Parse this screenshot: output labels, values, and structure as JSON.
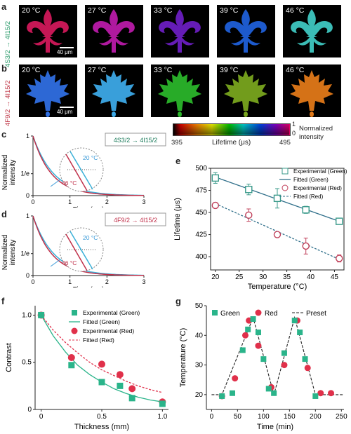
{
  "panel_a": {
    "letter": "a",
    "transition": "4S3/2 → 4I15/2",
    "temps": [
      "20 °C",
      "27 °C",
      "33 °C",
      "39 °C",
      "46 °C"
    ],
    "colors": [
      "#d0185a",
      "#b81aa8",
      "#6a1ec0",
      "#1f5fd8",
      "#3ec6c0"
    ],
    "scale_label": "40 μm"
  },
  "panel_b": {
    "letter": "b",
    "transition": "4F9/2 → 4I15/2",
    "temps": [
      "20 °C",
      "27 °C",
      "33 °C",
      "39 °C",
      "46 °C"
    ],
    "colors": [
      "#2f6ee0",
      "#3ca8e6",
      "#2ab42a",
      "#78a41e",
      "#e07818"
    ],
    "scale_label": "40 μm"
  },
  "colorbar": {
    "min": "395",
    "max": "495",
    "label": "Lifetime (μs)",
    "top": "1",
    "bottom": "0",
    "norm_label_1": "Normalized",
    "norm_label_2": "intensity"
  },
  "panel_c": {
    "letter": "c",
    "ylabel_1": "Normalized",
    "ylabel_2": "intensity",
    "xlabel": "Time (ms)",
    "xticks": [
      "0",
      "1",
      "2",
      "3"
    ],
    "yticks": [
      "0",
      "1/e",
      "1"
    ],
    "inset_top": "20 °C",
    "inset_bottom": "46 °C",
    "transition_box": "4S3/2 → 4I15/2"
  },
  "panel_d": {
    "letter": "d",
    "ylabel_1": "Normalized",
    "ylabel_2": "intensity",
    "xlabel": "Time (ms)",
    "xticks": [
      "0",
      "1",
      "2",
      "3"
    ],
    "yticks": [
      "0",
      "1/e",
      "1"
    ],
    "inset_top": "20 °C",
    "inset_bottom": "46 °C",
    "transition_box": "4F9/2 → 4I15/2"
  },
  "panel_e": {
    "letter": "e",
    "legend": [
      "Experimental (Green)",
      "Fitted (Green)",
      "Experimental (Red)",
      "Fitted (Red)"
    ]
  },
  "panel_f": {
    "letter": "f",
    "legend": [
      "Experimental (Green)",
      "Fitted (Green)",
      "Experimental (Red)",
      "Fitted (Red)"
    ]
  },
  "panel_g": {
    "letter": "g",
    "legend": [
      "Green",
      "Red",
      "Preset"
    ]
  },
  "chart_data": [
    {
      "type": "scatter",
      "id": "e",
      "xlabel": "Temperature (°C)",
      "ylabel": "Lifetime (μs)",
      "xlim": [
        19,
        47
      ],
      "ylim": [
        385,
        500
      ],
      "xticks": [
        20,
        25,
        30,
        35,
        40,
        45
      ],
      "yticks": [
        400,
        425,
        450,
        475,
        500
      ],
      "series": [
        {
          "name": "Experimental (Green)",
          "x": [
            20,
            27,
            33,
            39,
            46
          ],
          "y": [
            489,
            476,
            466,
            453,
            440
          ],
          "err": [
            6,
            6,
            11,
            4,
            3
          ],
          "color": "#3a9a8a"
        },
        {
          "name": "Fitted (Green)",
          "x": [
            20,
            46
          ],
          "y": [
            490,
            440
          ],
          "color": "#2f6f8a"
        },
        {
          "name": "Experimental (Red)",
          "x": [
            20,
            27,
            33,
            39,
            46
          ],
          "y": [
            458,
            447,
            425,
            412,
            398
          ],
          "err": [
            3,
            7,
            3,
            9,
            4
          ],
          "color": "#c0405a"
        },
        {
          "name": "Fitted (Red)",
          "x": [
            20,
            46
          ],
          "y": [
            460,
            397
          ],
          "color": "#2f6f8a"
        }
      ]
    },
    {
      "type": "scatter",
      "id": "f",
      "xlabel": "Thickness (mm)",
      "ylabel": "Contrast",
      "xlim": [
        -0.05,
        1.05
      ],
      "ylim": [
        0,
        1.1
      ],
      "xticks": [
        0,
        0.5,
        1.0
      ],
      "xtick_labels": [
        "0",
        "0.5",
        "1.0"
      ],
      "yticks": [
        0,
        0.5,
        1.0
      ],
      "ytick_labels": [
        "0",
        "0.5",
        "1.0"
      ],
      "series": [
        {
          "name": "Experimental (Green)",
          "x": [
            0,
            0.25,
            0.5,
            0.65,
            0.75,
            1.0
          ],
          "y": [
            1.0,
            0.47,
            0.29,
            0.25,
            0.12,
            0.06
          ],
          "color": "#2ab48a"
        },
        {
          "name": "Fitted (Green)",
          "x": [
            0,
            0.1,
            0.2,
            0.3,
            0.4,
            0.5,
            0.6,
            0.7,
            0.8,
            0.9,
            1.0
          ],
          "y": [
            1.0,
            0.78,
            0.61,
            0.47,
            0.37,
            0.29,
            0.22,
            0.17,
            0.13,
            0.1,
            0.08
          ],
          "color": "#2ab48a"
        },
        {
          "name": "Experimental (Red)",
          "x": [
            0,
            0.25,
            0.5,
            0.65,
            0.75,
            1.0
          ],
          "y": [
            1.0,
            0.55,
            0.48,
            0.37,
            0.22,
            0.08
          ],
          "color": "#e0304a"
        },
        {
          "name": "Fitted (Red)",
          "x": [
            0,
            0.1,
            0.2,
            0.3,
            0.4,
            0.5,
            0.6,
            0.7,
            0.8,
            0.9,
            1.0
          ],
          "y": [
            1.0,
            0.84,
            0.71,
            0.6,
            0.5,
            0.42,
            0.36,
            0.3,
            0.25,
            0.21,
            0.18
          ],
          "color": "#e0304a"
        }
      ]
    },
    {
      "type": "line",
      "id": "g",
      "xlabel": "Time (min)",
      "ylabel": "Temperature (°C)",
      "xlim": [
        -10,
        255
      ],
      "ylim": [
        15,
        50
      ],
      "xticks": [
        0,
        50,
        100,
        150,
        200,
        250
      ],
      "yticks": [
        20,
        30,
        40,
        50
      ],
      "series": [
        {
          "name": "Green",
          "x": [
            20,
            40,
            60,
            70,
            80,
            90,
            100,
            110,
            120,
            140,
            160,
            170,
            180,
            200
          ],
          "y": [
            19.5,
            20.5,
            35,
            42,
            45.5,
            41,
            32,
            22,
            20.5,
            34,
            45,
            41,
            32,
            19.5
          ],
          "color": "#2ab48a"
        },
        {
          "name": "Red",
          "x": [
            20,
            45,
            65,
            72,
            90,
            115,
            140,
            165,
            185,
            210,
            230
          ],
          "y": [
            19.5,
            25.5,
            40,
            45,
            36.5,
            22.5,
            30,
            45,
            29,
            20.5,
            20.5
          ],
          "color": "#e0304a"
        },
        {
          "name": "Preset",
          "x": [
            0,
            20,
            80,
            120,
            160,
            200,
            255
          ],
          "y": [
            20,
            20,
            46,
            20,
            46,
            20,
            20
          ],
          "color": "#222"
        }
      ]
    }
  ]
}
